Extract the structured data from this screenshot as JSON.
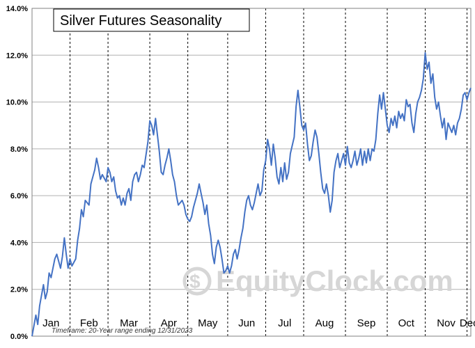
{
  "chart_data": {
    "type": "line",
    "title": "Silver Futures Seasonality",
    "xlabel": "",
    "ylabel": "",
    "note": "Timeframe: 20-Year range ending 12/31/2023",
    "watermark": "EquityClock.com",
    "ylim": [
      0,
      14
    ],
    "y_ticks": [
      "0.0%",
      "2.0%",
      "4.0%",
      "6.0%",
      "8.0%",
      "10.0%",
      "12.0%",
      "14.0%"
    ],
    "y_tick_values": [
      0,
      2,
      4,
      6,
      8,
      10,
      12,
      14
    ],
    "months": [
      "Jan",
      "Feb",
      "Mar",
      "Apr",
      "May",
      "Jun",
      "Jul",
      "Aug",
      "Sep",
      "Oct",
      "Nov",
      "Dec"
    ],
    "month_boundaries": [
      "Feb 1",
      "Mar 1",
      "Apr 1",
      "May 1",
      "Jun 1",
      "Jul 1",
      "Aug 1",
      "Sep 1",
      "Oct 1",
      "Nov 1",
      "Dec 1"
    ],
    "grid": true,
    "series_color": "#4472c4",
    "series": [
      {
        "values": [
          [
            1,
            0.0
          ],
          [
            3,
            0.9
          ],
          [
            4,
            0.5
          ],
          [
            5,
            1.3
          ],
          [
            7,
            2.2
          ],
          [
            8,
            1.6
          ],
          [
            9,
            1.9
          ],
          [
            10,
            2.7
          ],
          [
            11,
            2.5
          ],
          [
            12,
            2.9
          ],
          [
            13,
            3.3
          ],
          [
            14,
            3.5
          ],
          [
            15,
            3.2
          ],
          [
            16,
            2.9
          ],
          [
            17,
            3.4
          ],
          [
            18,
            4.2
          ],
          [
            19,
            3.5
          ],
          [
            20,
            2.9
          ],
          [
            21,
            3.3
          ],
          [
            22,
            3.0
          ],
          [
            24,
            3.3
          ],
          [
            25,
            4.1
          ],
          [
            26,
            4.6
          ],
          [
            27,
            5.4
          ],
          [
            28,
            5.1
          ],
          [
            29,
            5.8
          ],
          [
            31,
            5.6
          ],
          [
            32,
            6.5
          ],
          [
            34,
            7.1
          ],
          [
            35,
            7.6
          ],
          [
            36,
            7.2
          ],
          [
            37,
            6.7
          ],
          [
            38,
            6.9
          ],
          [
            40,
            6.6
          ],
          [
            41,
            7.2
          ],
          [
            42,
            7.0
          ],
          [
            43,
            6.6
          ],
          [
            44,
            6.8
          ],
          [
            45,
            6.2
          ],
          [
            46,
            5.9
          ],
          [
            47,
            6.0
          ],
          [
            48,
            5.6
          ],
          [
            49,
            5.9
          ],
          [
            50,
            5.6
          ],
          [
            51,
            6.1
          ],
          [
            52,
            6.3
          ],
          [
            53,
            5.8
          ],
          [
            54,
            6.6
          ],
          [
            55,
            6.9
          ],
          [
            56,
            7.0
          ],
          [
            57,
            6.6
          ],
          [
            58,
            6.9
          ],
          [
            59,
            7.3
          ],
          [
            60,
            7.2
          ],
          [
            62,
            8.3
          ],
          [
            63,
            9.2
          ],
          [
            64,
            9.0
          ],
          [
            65,
            8.6
          ],
          [
            66,
            9.3
          ],
          [
            67,
            8.6
          ],
          [
            68,
            7.9
          ],
          [
            69,
            7.0
          ],
          [
            70,
            6.9
          ],
          [
            71,
            7.3
          ],
          [
            72,
            7.6
          ],
          [
            73,
            8.0
          ],
          [
            74,
            7.5
          ],
          [
            75,
            6.9
          ],
          [
            76,
            6.6
          ],
          [
            77,
            6.0
          ],
          [
            78,
            5.6
          ],
          [
            80,
            5.8
          ],
          [
            81,
            5.6
          ],
          [
            82,
            5.2
          ],
          [
            83,
            5.0
          ],
          [
            84,
            4.9
          ],
          [
            85,
            5.1
          ],
          [
            86,
            5.5
          ],
          [
            88,
            6.1
          ],
          [
            89,
            6.5
          ],
          [
            90,
            6.1
          ],
          [
            91,
            5.7
          ],
          [
            92,
            5.2
          ],
          [
            93,
            5.6
          ],
          [
            94,
            4.8
          ],
          [
            95,
            4.3
          ],
          [
            96,
            3.5
          ],
          [
            97,
            3.1
          ],
          [
            98,
            3.8
          ],
          [
            99,
            4.1
          ],
          [
            100,
            3.8
          ],
          [
            101,
            3.3
          ],
          [
            102,
            2.7
          ],
          [
            103,
            2.8
          ],
          [
            104,
            3.0
          ],
          [
            105,
            2.7
          ],
          [
            106,
            3.0
          ],
          [
            107,
            3.5
          ],
          [
            108,
            3.7
          ],
          [
            109,
            3.3
          ],
          [
            110,
            3.7
          ],
          [
            111,
            4.2
          ],
          [
            112,
            4.6
          ],
          [
            113,
            5.3
          ],
          [
            114,
            5.8
          ],
          [
            115,
            6.0
          ],
          [
            116,
            5.6
          ],
          [
            117,
            5.4
          ],
          [
            118,
            5.7
          ],
          [
            119,
            6.1
          ],
          [
            120,
            6.5
          ],
          [
            121,
            6.0
          ],
          [
            122,
            6.2
          ],
          [
            123,
            7.1
          ],
          [
            124,
            7.5
          ],
          [
            125,
            8.4
          ],
          [
            126,
            8.0
          ],
          [
            127,
            7.3
          ],
          [
            128,
            8.2
          ],
          [
            129,
            7.6
          ],
          [
            130,
            6.8
          ],
          [
            131,
            6.5
          ],
          [
            132,
            7.2
          ],
          [
            133,
            6.6
          ],
          [
            134,
            7.4
          ],
          [
            135,
            6.7
          ],
          [
            136,
            7.0
          ],
          [
            137,
            7.8
          ],
          [
            139,
            8.5
          ],
          [
            140,
            9.8
          ],
          [
            141,
            10.5
          ],
          [
            142,
            9.8
          ],
          [
            143,
            9.0
          ],
          [
            144,
            8.8
          ],
          [
            145,
            9.1
          ],
          [
            146,
            8.2
          ],
          [
            147,
            7.5
          ],
          [
            148,
            7.7
          ],
          [
            149,
            8.3
          ],
          [
            150,
            8.8
          ],
          [
            151,
            8.5
          ],
          [
            152,
            7.8
          ],
          [
            153,
            7.0
          ],
          [
            154,
            6.3
          ],
          [
            155,
            6.1
          ],
          [
            156,
            6.5
          ],
          [
            157,
            6.0
          ],
          [
            158,
            5.3
          ],
          [
            159,
            5.8
          ],
          [
            160,
            7.0
          ],
          [
            161,
            7.5
          ],
          [
            162,
            7.8
          ],
          [
            163,
            7.2
          ],
          [
            164,
            7.5
          ],
          [
            165,
            7.8
          ],
          [
            166,
            7.3
          ],
          [
            167,
            8.1
          ],
          [
            168,
            7.4
          ],
          [
            169,
            7.2
          ],
          [
            170,
            7.5
          ],
          [
            171,
            7.9
          ],
          [
            172,
            7.3
          ],
          [
            173,
            7.6
          ],
          [
            174,
            8.0
          ],
          [
            175,
            7.3
          ],
          [
            176,
            7.9
          ],
          [
            177,
            7.4
          ],
          [
            178,
            8.0
          ],
          [
            179,
            7.5
          ],
          [
            180,
            8.0
          ],
          [
            181,
            7.9
          ],
          [
            182,
            8.4
          ],
          [
            183,
            9.5
          ],
          [
            184,
            10.3
          ],
          [
            185,
            9.7
          ],
          [
            186,
            10.4
          ],
          [
            187,
            9.7
          ],
          [
            188,
            9.0
          ],
          [
            189,
            8.7
          ],
          [
            190,
            9.3
          ],
          [
            191,
            9.0
          ],
          [
            192,
            9.4
          ],
          [
            193,
            8.9
          ],
          [
            194,
            9.6
          ],
          [
            195,
            9.3
          ],
          [
            196,
            9.5
          ],
          [
            197,
            9.2
          ],
          [
            198,
            10.1
          ],
          [
            199,
            9.8
          ],
          [
            200,
            9.9
          ],
          [
            201,
            9.1
          ],
          [
            202,
            8.7
          ],
          [
            203,
            9.5
          ],
          [
            204,
            10.0
          ],
          [
            205,
            10.2
          ],
          [
            206,
            10.5
          ],
          [
            207,
            11.0
          ],
          [
            208,
            12.1
          ],
          [
            209,
            11.4
          ],
          [
            210,
            11.7
          ],
          [
            211,
            10.8
          ],
          [
            212,
            11.2
          ],
          [
            213,
            10.2
          ],
          [
            214,
            9.7
          ],
          [
            215,
            10.0
          ],
          [
            216,
            9.4
          ],
          [
            217,
            8.9
          ],
          [
            218,
            9.3
          ],
          [
            219,
            8.4
          ],
          [
            220,
            9.1
          ],
          [
            221,
            8.9
          ],
          [
            222,
            8.7
          ],
          [
            223,
            9.0
          ],
          [
            224,
            8.6
          ],
          [
            225,
            9.1
          ],
          [
            226,
            9.3
          ],
          [
            227,
            9.7
          ],
          [
            228,
            10.3
          ],
          [
            229,
            10.4
          ],
          [
            230,
            10.1
          ],
          [
            231,
            10.4
          ],
          [
            232,
            10.6
          ]
        ]
      }
    ]
  }
}
